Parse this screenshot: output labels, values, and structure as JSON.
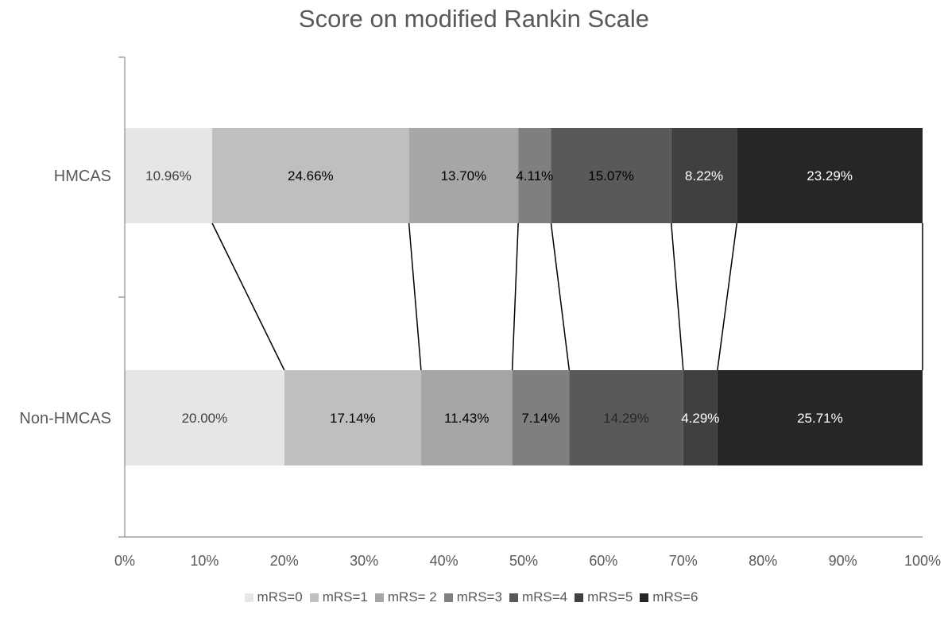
{
  "chart_data": {
    "type": "bar",
    "orientation": "horizontal",
    "stacked": "percent",
    "title": "Score on modified Rankin Scale",
    "categories": [
      "HMCAS",
      "Non-HMCAS"
    ],
    "series": [
      {
        "name": "mRS=0",
        "color": "#e6e6e6",
        "values": [
          10.96,
          20.0
        ],
        "labels": [
          "10.96%",
          "20.00%"
        ],
        "label_colors": [
          "#404040",
          "#404040"
        ]
      },
      {
        "name": "mRS=1",
        "color": "#bfbfbf",
        "values": [
          24.66,
          17.14
        ],
        "labels": [
          "24.66%",
          "17.14%"
        ],
        "label_colors": [
          "#000000",
          "#000000"
        ]
      },
      {
        "name": "mRS= 2",
        "color": "#a6a6a6",
        "values": [
          13.7,
          11.43
        ],
        "labels": [
          "13.70%",
          "11.43%"
        ],
        "label_colors": [
          "#000000",
          "#000000"
        ]
      },
      {
        "name": "mRS=3",
        "color": "#7f7f7f",
        "values": [
          4.11,
          7.14
        ],
        "labels": [
          "4.11%",
          "7.14%"
        ],
        "label_colors": [
          "#000000",
          "#000000"
        ]
      },
      {
        "name": "mRS=4",
        "color": "#595959",
        "values": [
          15.07,
          14.29
        ],
        "labels": [
          "15.07%",
          "14.29%"
        ],
        "label_colors": [
          "#000000",
          "#262626"
        ]
      },
      {
        "name": "mRS=5",
        "color": "#404040",
        "values": [
          8.22,
          4.29
        ],
        "labels": [
          "8.22%",
          "4.29%"
        ],
        "label_colors": [
          "#ffffff",
          "#ffffff"
        ]
      },
      {
        "name": "mRS=6",
        "color": "#262626",
        "values": [
          23.29,
          25.71
        ],
        "labels": [
          "23.29%",
          "25.71%"
        ],
        "label_colors": [
          "#ffffff",
          "#ffffff"
        ]
      }
    ],
    "xlim": [
      0,
      100
    ],
    "x_ticks": [
      "0%",
      "10%",
      "20%",
      "30%",
      "40%",
      "50%",
      "60%",
      "70%",
      "80%",
      "90%",
      "100%"
    ],
    "series_lines": true,
    "grid": false,
    "legend_position": "bottom"
  }
}
